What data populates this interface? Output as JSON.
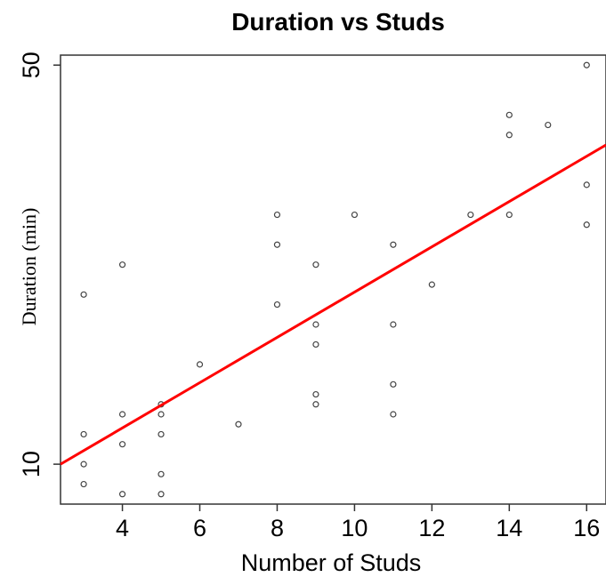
{
  "chart_data": {
    "type": "scatter",
    "title": "Duration vs Studs",
    "xlabel": "Number of Studs",
    "ylabel": "Duration (min)",
    "xlim": [
      2.4,
      16.5
    ],
    "ylim": [
      6.0,
      51.0
    ],
    "x_ticks": [
      4,
      6,
      8,
      10,
      12,
      14,
      16
    ],
    "x_tick_labels": [
      "4",
      "6",
      "8",
      "10",
      "12",
      "14",
      "16"
    ],
    "y_ticks": [
      10,
      50
    ],
    "y_tick_labels": [
      "10",
      "50"
    ],
    "grid": false,
    "point_color": "#444444",
    "line_color": "#ff0000",
    "points": [
      {
        "x": 3,
        "y": 27
      },
      {
        "x": 3,
        "y": 13
      },
      {
        "x": 3,
        "y": 10
      },
      {
        "x": 3,
        "y": 8
      },
      {
        "x": 4,
        "y": 30
      },
      {
        "x": 4,
        "y": 15
      },
      {
        "x": 4,
        "y": 12
      },
      {
        "x": 4,
        "y": 7
      },
      {
        "x": 5,
        "y": 16
      },
      {
        "x": 5,
        "y": 15
      },
      {
        "x": 5,
        "y": 13
      },
      {
        "x": 5,
        "y": 9
      },
      {
        "x": 5,
        "y": 7
      },
      {
        "x": 6,
        "y": 20
      },
      {
        "x": 7,
        "y": 14
      },
      {
        "x": 8,
        "y": 35
      },
      {
        "x": 8,
        "y": 32
      },
      {
        "x": 8,
        "y": 26
      },
      {
        "x": 9,
        "y": 30
      },
      {
        "x": 9,
        "y": 24
      },
      {
        "x": 9,
        "y": 22
      },
      {
        "x": 9,
        "y": 17
      },
      {
        "x": 9,
        "y": 16
      },
      {
        "x": 10,
        "y": 35
      },
      {
        "x": 11,
        "y": 32
      },
      {
        "x": 11,
        "y": 24
      },
      {
        "x": 11,
        "y": 18
      },
      {
        "x": 11,
        "y": 15
      },
      {
        "x": 12,
        "y": 28
      },
      {
        "x": 13,
        "y": 35
      },
      {
        "x": 14,
        "y": 45
      },
      {
        "x": 14,
        "y": 43
      },
      {
        "x": 14,
        "y": 35
      },
      {
        "x": 15,
        "y": 44
      },
      {
        "x": 16,
        "y": 50
      },
      {
        "x": 16,
        "y": 38
      },
      {
        "x": 16,
        "y": 34
      }
    ],
    "fit_line": {
      "x": [
        2.4,
        16.5
      ],
      "y": [
        10.0,
        42.0
      ]
    }
  }
}
